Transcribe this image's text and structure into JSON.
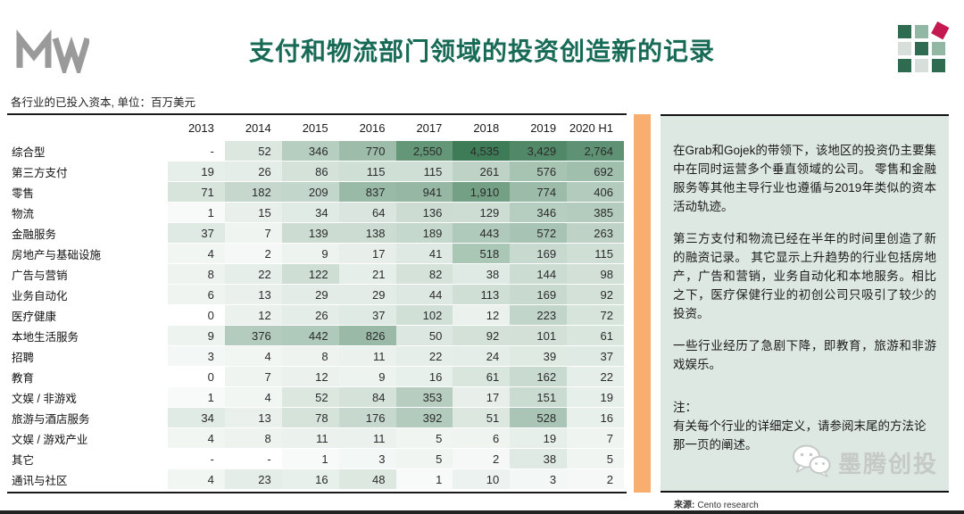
{
  "colors": {
    "title_green": "#176A55",
    "heat_dark_green": "#3E7C57",
    "orange_bar": "#F8AE6E",
    "panel_bg": "#DEE8E2",
    "logo_gray": "#9A9A9A",
    "watermark_gray": "#C6CAC6",
    "brand_red": "#C41950",
    "brand_dark_green": "#2F6B51",
    "brand_mid_green": "#92B7A5",
    "brand_light_gray": "#D8DEDA"
  },
  "header": {
    "logo_text": "MW",
    "title": "支付和物流部门领域的投资创造新的记录",
    "grid_logo_cells": [
      "dark",
      "mid",
      "red-diamond",
      "light",
      "dark",
      "mid",
      "dark",
      "light",
      "dark"
    ]
  },
  "table": {
    "subtitle": "各行业的已投入资本, 单位：百万美元",
    "columns": [
      "2013",
      "2014",
      "2015",
      "2016",
      "2017",
      "2018",
      "2019",
      "2020 H1"
    ],
    "missing_placeholder": "-"
  },
  "chart_data": {
    "type": "heatmap",
    "title": "支付和物流部门领域的投资创造新的记录",
    "subtitle": "各行业的已投入资本, 单位：百万美元",
    "unit": "百万美元",
    "x": [
      "2013",
      "2014",
      "2015",
      "2016",
      "2017",
      "2018",
      "2019",
      "2020 H1"
    ],
    "heat_max": 4535,
    "series": [
      {
        "name": "综合型",
        "values": [
          null,
          52,
          346,
          770,
          2550,
          4535,
          3429,
          2764
        ]
      },
      {
        "name": "第三方支付",
        "values": [
          19,
          26,
          86,
          115,
          115,
          261,
          576,
          692
        ]
      },
      {
        "name": "零售",
        "values": [
          71,
          182,
          209,
          837,
          941,
          1910,
          774,
          406
        ]
      },
      {
        "name": "物流",
        "values": [
          1,
          15,
          34,
          64,
          136,
          129,
          346,
          385
        ]
      },
      {
        "name": "金融服务",
        "values": [
          37,
          7,
          139,
          138,
          189,
          443,
          572,
          263
        ]
      },
      {
        "name": "房地产与基础设施",
        "values": [
          4,
          2,
          9,
          17,
          41,
          518,
          169,
          115
        ]
      },
      {
        "name": "广告与营销",
        "values": [
          8,
          22,
          122,
          21,
          82,
          38,
          144,
          98
        ]
      },
      {
        "name": "业务自动化",
        "values": [
          6,
          13,
          29,
          29,
          44,
          113,
          169,
          92
        ]
      },
      {
        "name": "医疗健康",
        "values": [
          0,
          12,
          26,
          37,
          102,
          12,
          223,
          72
        ]
      },
      {
        "name": "本地生活服务",
        "values": [
          9,
          376,
          442,
          826,
          50,
          92,
          101,
          61
        ]
      },
      {
        "name": "招聘",
        "values": [
          3,
          4,
          8,
          11,
          22,
          24,
          39,
          37
        ]
      },
      {
        "name": "教育",
        "values": [
          0,
          7,
          12,
          9,
          16,
          61,
          162,
          22
        ]
      },
      {
        "name": "文娱 / 非游戏",
        "values": [
          1,
          4,
          52,
          84,
          353,
          17,
          151,
          19
        ]
      },
      {
        "name": "旅游与酒店服务",
        "values": [
          34,
          13,
          78,
          176,
          392,
          51,
          528,
          16
        ]
      },
      {
        "name": "文娱 / 游戏产业",
        "values": [
          4,
          8,
          11,
          11,
          5,
          6,
          19,
          7
        ]
      },
      {
        "name": "其它",
        "values": [
          null,
          null,
          1,
          3,
          5,
          2,
          38,
          5
        ]
      },
      {
        "name": "通讯与社区",
        "values": [
          4,
          23,
          16,
          48,
          1,
          10,
          3,
          2
        ]
      }
    ]
  },
  "panel": {
    "paragraphs": [
      "在Grab和Gojek的带领下，该地区的投资仍主要集中在同时运营多个垂直领域的公司。 零售和金融服务等其他主导行业也遵循与2019年类似的资本活动轨迹。",
      "第三方支付和物流已经在半年的时间里创造了新的融资记录。 其它显示上升趋势的行业包括房地产，广告和营销，业务自动化和本地服务。相比之下，医疗保健行业的初创公司只吸引了较少的投资。",
      "一些行业经历了急剧下降，即教育，旅游和非游戏娱乐。"
    ],
    "note_title": "注：",
    "note_body": "有关每个行业的详细定义，请参阅末尾的方法论那一页的阐述。",
    "watermark_text": "墨腾创投"
  },
  "footer": {
    "source_label": "来源:",
    "source_value": "Cento research"
  }
}
